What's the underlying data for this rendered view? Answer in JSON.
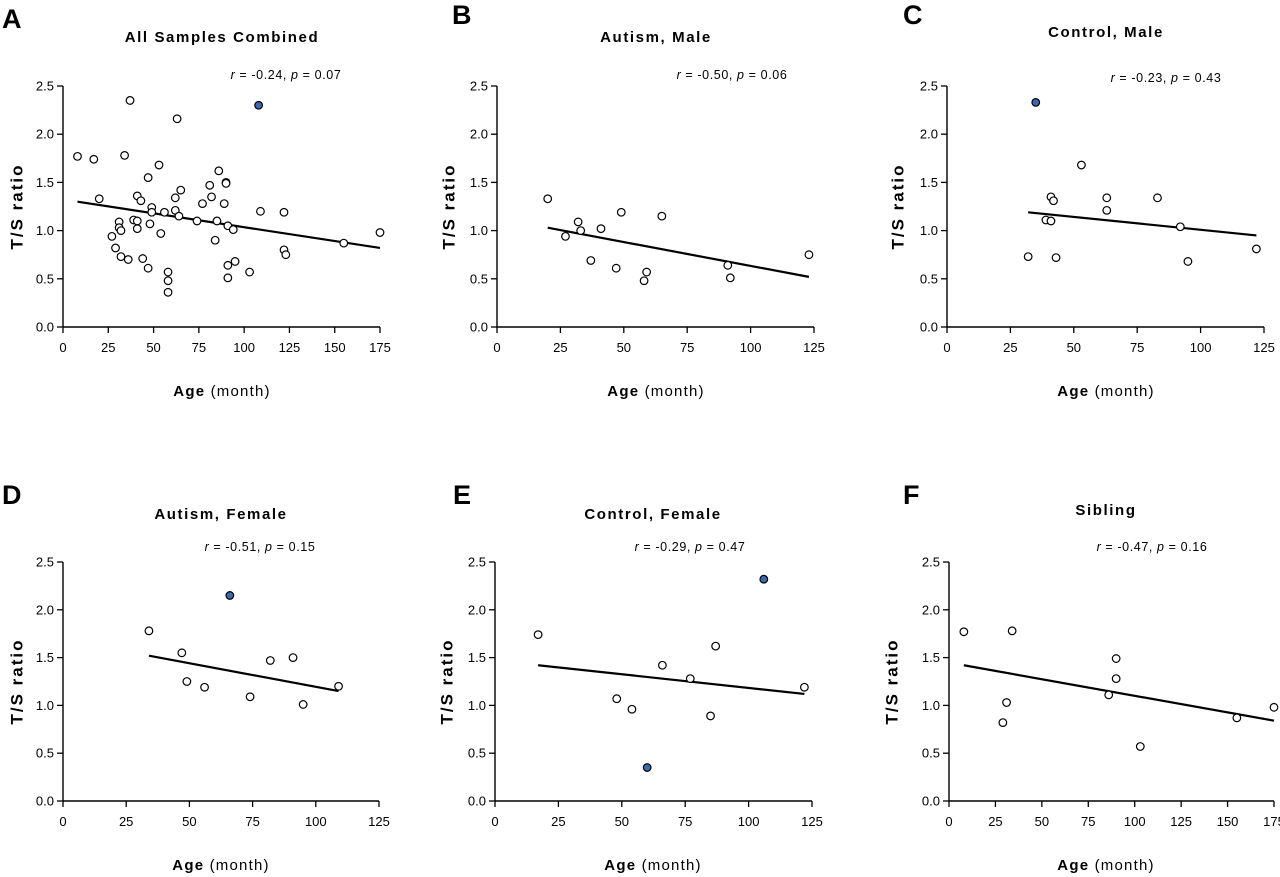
{
  "figure": {
    "accent_color": "#3b6ab0"
  },
  "chart_data": [
    {
      "type": "scatter",
      "panel_letter": "A",
      "title": "All Samples Combined",
      "annotation": {
        "r": "-0.24",
        "p": "0.07"
      },
      "xlabel_bold": "Age",
      "xlabel_rest": "(month)",
      "ylabel": "T/S ratio",
      "xlim": [
        0,
        175
      ],
      "ylim": [
        0,
        2.5
      ],
      "xticks": [
        0,
        25,
        50,
        75,
        100,
        125,
        150,
        175
      ],
      "xtick_labels": [
        "0",
        "25",
        "50",
        "75",
        "100",
        "125",
        "150",
        "175"
      ],
      "yticks": [
        0,
        0.5,
        1.0,
        1.5,
        2.0,
        2.5
      ],
      "ytick_labels": [
        "0.0",
        "0.5",
        "1.0",
        "1.5",
        "2.0",
        "2.5"
      ],
      "points": [
        [
          8,
          1.77
        ],
        [
          17,
          1.74
        ],
        [
          20,
          1.33
        ],
        [
          27,
          0.94
        ],
        [
          29,
          0.82
        ],
        [
          31,
          1.09
        ],
        [
          31,
          1.03
        ],
        [
          32,
          1.0
        ],
        [
          32,
          0.73
        ],
        [
          34,
          1.78
        ],
        [
          36,
          0.7
        ],
        [
          37,
          2.35
        ],
        [
          39,
          1.11
        ],
        [
          41,
          1.36
        ],
        [
          41,
          1.1
        ],
        [
          41,
          1.02
        ],
        [
          43,
          1.31
        ],
        [
          44,
          0.71
        ],
        [
          47,
          1.55
        ],
        [
          47,
          0.61
        ],
        [
          48,
          1.07
        ],
        [
          49,
          1.24
        ],
        [
          49,
          1.19
        ],
        [
          53,
          1.68
        ],
        [
          54,
          0.97
        ],
        [
          56,
          1.19
        ],
        [
          58,
          0.57
        ],
        [
          58,
          0.48
        ],
        [
          58,
          0.36
        ],
        [
          62,
          1.34
        ],
        [
          62,
          1.21
        ],
        [
          63,
          2.16
        ],
        [
          64,
          1.15
        ],
        [
          65,
          1.42
        ],
        [
          74,
          1.1
        ],
        [
          77,
          1.28
        ],
        [
          81,
          1.47
        ],
        [
          82,
          1.35
        ],
        [
          84,
          0.9
        ],
        [
          85,
          1.1
        ],
        [
          86,
          1.62
        ],
        [
          89,
          1.28
        ],
        [
          90,
          1.5
        ],
        [
          90,
          1.49
        ],
        [
          91,
          1.05
        ],
        [
          91,
          0.64
        ],
        [
          91,
          0.51
        ],
        [
          94,
          1.01
        ],
        [
          95,
          0.68
        ],
        [
          103,
          0.57
        ],
        [
          109,
          1.2
        ],
        [
          122,
          1.19
        ],
        [
          122,
          0.8
        ],
        [
          123,
          0.75
        ],
        [
          155,
          0.87
        ],
        [
          175,
          0.98
        ]
      ],
      "highlighted_points": [
        [
          108,
          2.3
        ]
      ],
      "fit_line": [
        [
          8,
          1.3
        ],
        [
          175,
          0.82
        ]
      ]
    },
    {
      "type": "scatter",
      "panel_letter": "B",
      "title": "Autism, Male",
      "annotation": {
        "r": "-0.50",
        "p": "0.06"
      },
      "xlabel_bold": "Age",
      "xlabel_rest": "(month)",
      "ylabel": "T/S ratio",
      "xlim": [
        0,
        125
      ],
      "ylim": [
        0,
        2.5
      ],
      "xticks": [
        0,
        25,
        50,
        75,
        100,
        125
      ],
      "xtick_labels": [
        "0",
        "25",
        "50",
        "75",
        "100",
        "125"
      ],
      "yticks": [
        0,
        0.5,
        1.0,
        1.5,
        2.0,
        2.5
      ],
      "ytick_labels": [
        "0.0",
        "0.5",
        "1.0",
        "1.5",
        "2.0",
        "2.5"
      ],
      "points": [
        [
          20,
          1.33
        ],
        [
          27,
          0.94
        ],
        [
          32,
          1.09
        ],
        [
          33,
          1.0
        ],
        [
          37,
          0.69
        ],
        [
          41,
          1.02
        ],
        [
          47,
          0.61
        ],
        [
          49,
          1.19
        ],
        [
          58,
          0.48
        ],
        [
          59,
          0.57
        ],
        [
          65,
          1.15
        ],
        [
          91,
          0.64
        ],
        [
          92,
          0.51
        ],
        [
          123,
          0.75
        ]
      ],
      "highlighted_points": [],
      "fit_line": [
        [
          20,
          1.03
        ],
        [
          123,
          0.52
        ]
      ]
    },
    {
      "type": "scatter",
      "panel_letter": "C",
      "title": "Control, Male",
      "annotation": {
        "r": "-0.23",
        "p": "0.43"
      },
      "xlabel_bold": "Age",
      "xlabel_rest": "(month)",
      "ylabel": "T/S ratio",
      "xlim": [
        0,
        125
      ],
      "ylim": [
        0,
        2.5
      ],
      "xticks": [
        0,
        25,
        50,
        75,
        100,
        125
      ],
      "xtick_labels": [
        "0",
        "25",
        "50",
        "75",
        "100",
        "125"
      ],
      "yticks": [
        0,
        0.5,
        1.0,
        1.5,
        2.0,
        2.5
      ],
      "ytick_labels": [
        "0.0",
        "0.5",
        "1.0",
        "1.5",
        "2.0",
        "2.5"
      ],
      "points": [
        [
          32,
          0.73
        ],
        [
          39,
          1.11
        ],
        [
          41,
          1.35
        ],
        [
          41,
          1.1
        ],
        [
          42,
          1.31
        ],
        [
          43,
          0.72
        ],
        [
          53,
          1.68
        ],
        [
          63,
          1.34
        ],
        [
          63,
          1.21
        ],
        [
          83,
          1.34
        ],
        [
          92,
          1.04
        ],
        [
          95,
          0.68
        ],
        [
          122,
          0.81
        ]
      ],
      "highlighted_points": [
        [
          35,
          2.33
        ]
      ],
      "fit_line": [
        [
          32,
          1.19
        ],
        [
          122,
          0.95
        ]
      ]
    },
    {
      "type": "scatter",
      "panel_letter": "D",
      "title": "Autism, Female",
      "annotation": {
        "r": "-0.51",
        "p": "0.15"
      },
      "xlabel_bold": "Age",
      "xlabel_rest": "(month)",
      "ylabel": "T/S ratio",
      "xlim": [
        0,
        125
      ],
      "ylim": [
        0,
        2.5
      ],
      "xticks": [
        0,
        25,
        50,
        75,
        100,
        125
      ],
      "xtick_labels": [
        "0",
        "25",
        "50",
        "75",
        "100",
        "125"
      ],
      "yticks": [
        0,
        0.5,
        1.0,
        1.5,
        2.0,
        2.5
      ],
      "ytick_labels": [
        "0.0",
        "0.5",
        "1.0",
        "1.5",
        "2.0",
        "2.5"
      ],
      "points": [
        [
          34,
          1.78
        ],
        [
          47,
          1.55
        ],
        [
          49,
          1.25
        ],
        [
          56,
          1.19
        ],
        [
          74,
          1.09
        ],
        [
          82,
          1.47
        ],
        [
          91,
          1.5
        ],
        [
          95,
          1.01
        ],
        [
          109,
          1.2
        ]
      ],
      "highlighted_points": [
        [
          66,
          2.15
        ]
      ],
      "fit_line": [
        [
          34,
          1.52
        ],
        [
          109,
          1.15
        ]
      ]
    },
    {
      "type": "scatter",
      "panel_letter": "E",
      "title": "Control, Female",
      "annotation": {
        "r": "-0.29",
        "p": "0.47"
      },
      "xlabel_bold": "Age",
      "xlabel_rest": "(month)",
      "ylabel": "T/S ratio",
      "xlim": [
        0,
        125
      ],
      "ylim": [
        0,
        2.5
      ],
      "xticks": [
        0,
        25,
        50,
        75,
        100,
        125
      ],
      "xtick_labels": [
        "0",
        "25",
        "50",
        "75",
        "100",
        "125"
      ],
      "yticks": [
        0,
        0.5,
        1.0,
        1.5,
        2.0,
        2.5
      ],
      "ytick_labels": [
        "0.0",
        "0.5",
        "1.0",
        "1.5",
        "2.0",
        "2.5"
      ],
      "points": [
        [
          17,
          1.74
        ],
        [
          48,
          1.07
        ],
        [
          54,
          0.96
        ],
        [
          66,
          1.42
        ],
        [
          77,
          1.28
        ],
        [
          85,
          0.89
        ],
        [
          87,
          1.62
        ],
        [
          122,
          1.19
        ]
      ],
      "highlighted_points": [
        [
          106,
          2.32
        ],
        [
          60,
          0.35
        ]
      ],
      "fit_line": [
        [
          17,
          1.42
        ],
        [
          122,
          1.12
        ]
      ]
    },
    {
      "type": "scatter",
      "panel_letter": "F",
      "title": "Sibling",
      "annotation": {
        "r": "-0.47",
        "p": "0.16"
      },
      "xlabel_bold": "Age",
      "xlabel_rest": "(month)",
      "ylabel": "T/S ratio",
      "xlim": [
        0,
        175
      ],
      "ylim": [
        0,
        2.5
      ],
      "xticks": [
        0,
        25,
        50,
        75,
        100,
        125,
        150,
        175
      ],
      "xtick_labels": [
        "0",
        "25",
        "50",
        "75",
        "100",
        "125",
        "150",
        "175"
      ],
      "yticks": [
        0,
        0.5,
        1.0,
        1.5,
        2.0,
        2.5
      ],
      "ytick_labels": [
        "0.0",
        "0.5",
        "1.0",
        "1.5",
        "2.0",
        "2.5"
      ],
      "points": [
        [
          8,
          1.77
        ],
        [
          29,
          0.82
        ],
        [
          31,
          1.03
        ],
        [
          34,
          1.78
        ],
        [
          86,
          1.11
        ],
        [
          90,
          1.49
        ],
        [
          90,
          1.28
        ],
        [
          103,
          0.57
        ],
        [
          155,
          0.87
        ],
        [
          175,
          0.98
        ]
      ],
      "highlighted_points": [],
      "fit_line": [
        [
          8,
          1.42
        ],
        [
          175,
          0.84
        ]
      ]
    }
  ]
}
